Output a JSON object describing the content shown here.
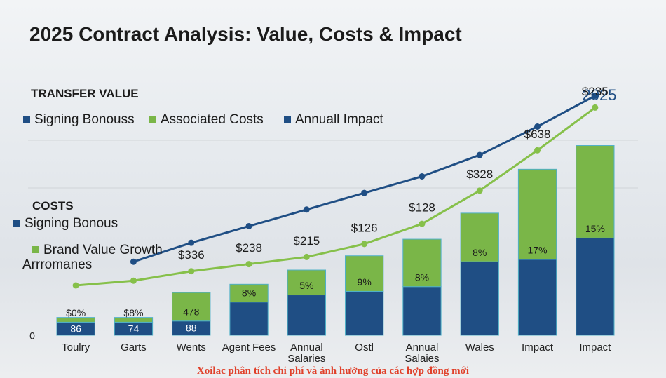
{
  "chart_data": {
    "type": "bar-line",
    "title": "2025 Contract Analysis: Value, Costs & Impact",
    "annotation": "2025",
    "footer": "Xoilac phân tích chi phí và ảnh hưởng của các hợp đồng mới",
    "legend_groups": [
      {
        "title": "TRANSFER VALUE",
        "items": [
          {
            "name": "Signing Bonouss",
            "color": "#1f4e84"
          },
          {
            "name": "Associated Costs",
            "color": "#7ab648"
          },
          {
            "name": "Annuall Impact",
            "color": "#1f4e84"
          }
        ]
      },
      {
        "title": "COSTS",
        "items": [
          {
            "name": "Signing Bonous",
            "color": "#1f4e84"
          },
          {
            "name": "Brand Value Growth",
            "color": "#7ab648"
          },
          {
            "name": "Arrromanes"
          }
        ]
      }
    ],
    "categories": [
      "Toulry",
      "Garts",
      "Wents",
      "Agent Fees",
      "Annual Salaries",
      "Ostl",
      "Annual Salaies",
      "Wales",
      "Impact",
      "Impact"
    ],
    "stacked": true,
    "series": [
      {
        "type": "bar",
        "color": "#1f4e84",
        "values": [
          5.5,
          5.5,
          6,
          14,
          17,
          18.5,
          20.5,
          31,
          32,
          41
        ]
      },
      {
        "type": "bar",
        "color": "#7ab648",
        "values": [
          2,
          2,
          12,
          7.5,
          10.5,
          15,
          20,
          20.5,
          38,
          39
        ]
      },
      {
        "type": "line",
        "color": "#1f4e84",
        "values": [
          null,
          31,
          39,
          46,
          53,
          60,
          67,
          76,
          88,
          101
        ]
      },
      {
        "type": "line",
        "color": "#86c04a",
        "values": [
          21,
          23,
          27,
          30,
          33,
          38.5,
          47,
          61,
          78,
          96
        ]
      }
    ],
    "segment_labels": [
      "$0%",
      "$8%",
      "478",
      "8%",
      "5%",
      "9%",
      "8%",
      "8%",
      "17%",
      "15%"
    ],
    "inner_labels": [
      "86",
      "74",
      "88",
      null,
      null,
      null,
      null,
      null,
      null,
      null
    ],
    "line_labels": [
      null,
      null,
      "$336",
      "$238",
      "$215",
      "$126",
      "$128",
      "$328",
      "$638",
      "$235"
    ],
    "ylim": [
      0,
      105
    ],
    "yticks": [
      0
    ]
  }
}
